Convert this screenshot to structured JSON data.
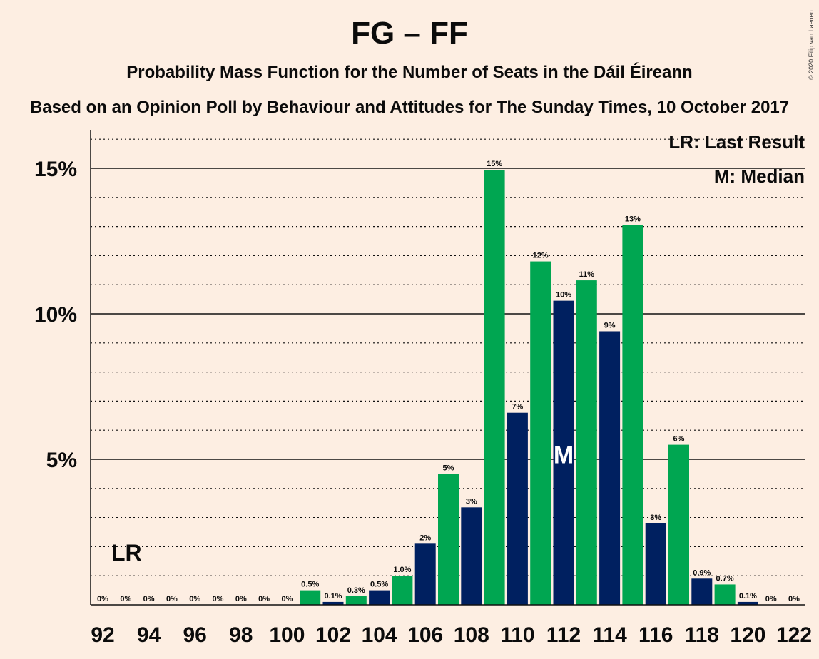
{
  "title": "FG – FF",
  "subtitle": "Probability Mass Function for the Number of Seats in the Dáil Éireann",
  "subtitle2": "Based on an Opinion Poll by Behaviour and Attitudes for The Sunday Times, 10 October 2017",
  "copyright": "© 2020 Filip van Laenen",
  "legend": {
    "lr": "LR: Last Result",
    "median": "M: Median"
  },
  "colors": {
    "green": "#00A651",
    "navy": "#002060",
    "background": "#FDEEE2"
  },
  "chart_data": {
    "type": "bar",
    "x": [
      92,
      93,
      94,
      95,
      96,
      97,
      98,
      99,
      100,
      101,
      102,
      103,
      104,
      105,
      106,
      107,
      108,
      109,
      110,
      111,
      112,
      113,
      114,
      115,
      116,
      117,
      118,
      119,
      120,
      121,
      122
    ],
    "values": [
      0,
      0,
      0,
      0,
      0,
      0,
      0,
      0,
      0,
      0.5,
      0.1,
      0.3,
      0.5,
      1.0,
      2.1,
      4.5,
      3.35,
      14.95,
      6.6,
      11.8,
      10.45,
      11.15,
      9.4,
      13.05,
      2.8,
      5.5,
      0.9,
      0.7,
      0.1,
      0,
      0
    ],
    "labels": [
      "0%",
      "0%",
      "0%",
      "0%",
      "0%",
      "0%",
      "0%",
      "0%",
      "0%",
      "0.5%",
      "0.1%",
      "0.3%",
      "0.5%",
      "1.0%",
      "2%",
      "5%",
      "3%",
      "15%",
      "7%",
      "12%",
      "10%",
      "11%",
      "9%",
      "13%",
      "3%",
      "6%",
      "0.9%",
      "0.7%",
      "0.1%",
      "0%",
      "0%"
    ],
    "x_tick_labels": [
      "92",
      "94",
      "96",
      "98",
      "100",
      "102",
      "104",
      "106",
      "108",
      "110",
      "112",
      "114",
      "116",
      "118",
      "120",
      "122"
    ],
    "y_tick_labels": [
      "5%",
      "10%",
      "15%"
    ],
    "y_ticks": [
      5,
      10,
      15
    ],
    "ylim": [
      0,
      16.4
    ],
    "last_result_seat": 93,
    "last_result_marker": "LR",
    "median_seat": 112,
    "median_marker": "M",
    "grid": true
  }
}
